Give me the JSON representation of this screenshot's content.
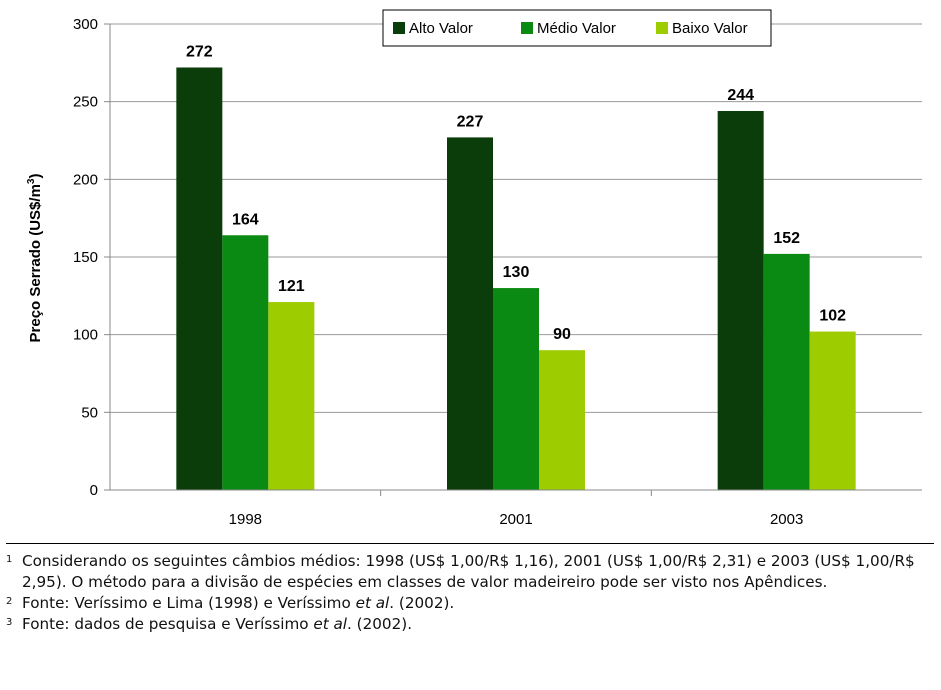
{
  "chart_data": {
    "type": "bar",
    "categories": [
      "1998",
      "2001",
      "2003"
    ],
    "series": [
      {
        "name": "Alto Valor",
        "values": [
          272,
          227,
          244
        ],
        "color": "#0b3d0b"
      },
      {
        "name": "Médio Valor",
        "values": [
          164,
          130,
          152
        ],
        "color": "#0a8a12"
      },
      {
        "name": "Baixo Valor",
        "values": [
          121,
          90,
          102
        ],
        "color": "#9dcc00"
      }
    ],
    "ylabel": "Preço Serrado (US$/m",
    "ylabel_sup": "3",
    "ylabel_close": ")",
    "ylim": [
      0,
      300
    ],
    "yticks": [
      0,
      50,
      100,
      150,
      200,
      250,
      300
    ],
    "grid": true,
    "legend_position": "top-right"
  },
  "footnotes": [
    {
      "num": "1",
      "text": "Considerando os seguintes câmbios médios: 1998 (US$ 1,00/R$ 1,16), 2001 (US$ 1,00/R$ 2,31) e 2003 (US$ 1,00/R$ 2,95). O método para a divisão de espécies em classes de valor madeireiro pode ser visto nos Apêndices."
    },
    {
      "num": "2",
      "text_before": "Fonte: Veríssimo e Lima (1998) e Veríssimo ",
      "italic": "et al",
      "text_after": ". (2002)."
    },
    {
      "num": "3",
      "text_before": "Fonte: dados de pesquisa e Veríssimo ",
      "italic": "et al",
      "text_after": ". (2002)."
    }
  ]
}
